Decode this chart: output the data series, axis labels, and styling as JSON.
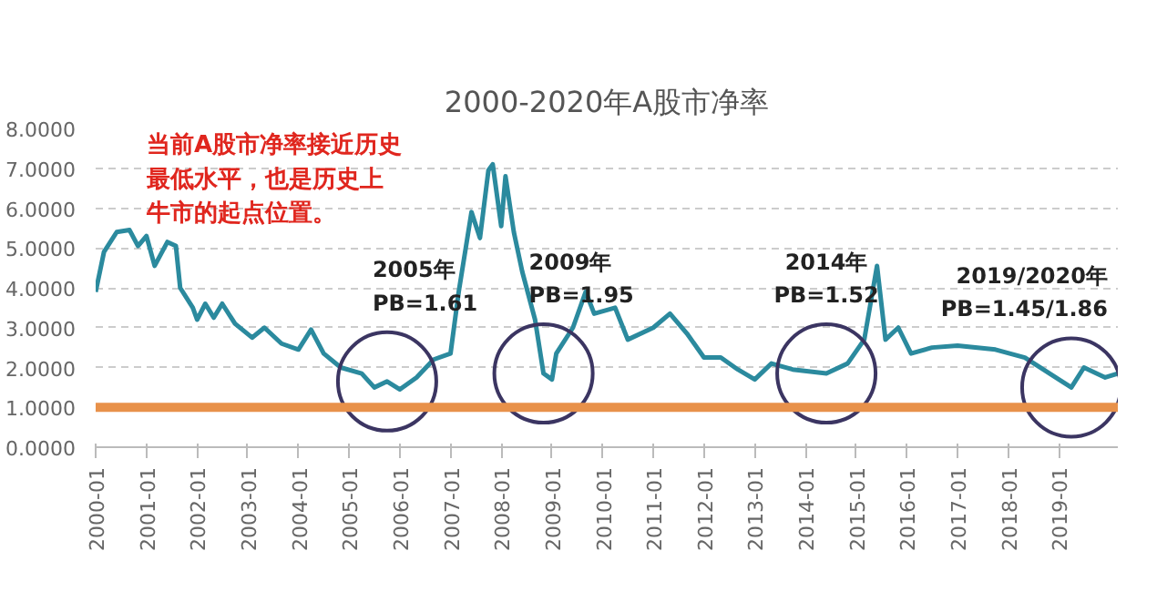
{
  "chart_data": {
    "type": "line",
    "title": "2000-2020年A股市净率",
    "x": [
      "2000-01",
      "2000-03",
      "2000-06",
      "2000-09",
      "2000-11",
      "2001-01",
      "2001-03",
      "2001-06",
      "2001-08",
      "2001-09",
      "2001-12",
      "2002-01",
      "2002-03",
      "2002-05",
      "2002-07",
      "2002-10",
      "2003-02",
      "2003-05",
      "2003-09",
      "2004-01",
      "2004-04",
      "2004-07",
      "2004-11",
      "2005-04",
      "2005-07",
      "2005-10",
      "2006-01",
      "2006-05",
      "2006-09",
      "2007-01",
      "2007-03",
      "2007-06",
      "2007-08",
      "2007-10",
      "2007-11",
      "2008-01",
      "2008-02",
      "2008-04",
      "2008-06",
      "2008-09",
      "2008-11",
      "2009-01",
      "2009-02",
      "2009-06",
      "2009-09",
      "2009-11",
      "2010-04",
      "2010-07",
      "2011-01",
      "2011-05",
      "2011-09",
      "2012-01",
      "2012-05",
      "2012-09",
      "2013-01",
      "2013-05",
      "2013-10",
      "2014-06",
      "2014-11",
      "2015-03",
      "2015-06",
      "2015-08",
      "2015-11",
      "2016-02",
      "2016-07",
      "2017-01",
      "2017-10",
      "2018-05",
      "2019-01",
      "2019-04",
      "2019-07",
      "2019-12",
      "2020-03"
    ],
    "series": [
      {
        "color": "#2b8a9e",
        "values": [
          3.9,
          4.9,
          5.4,
          5.45,
          5.05,
          5.3,
          4.55,
          5.15,
          5.05,
          4.0,
          3.5,
          3.2,
          3.6,
          3.25,
          3.6,
          3.1,
          2.75,
          3.0,
          2.6,
          2.45,
          2.95,
          2.35,
          2.0,
          1.85,
          1.5,
          1.65,
          1.45,
          1.75,
          2.2,
          2.35,
          3.9,
          5.9,
          5.25,
          6.95,
          7.1,
          5.55,
          6.8,
          5.4,
          4.4,
          3.2,
          1.85,
          1.7,
          2.35,
          3.0,
          3.9,
          3.35,
          3.5,
          2.7,
          3.0,
          3.35,
          2.85,
          2.25,
          2.25,
          1.95,
          1.7,
          2.1,
          1.95,
          1.85,
          2.1,
          2.7,
          4.55,
          2.7,
          3.0,
          2.35,
          2.5,
          2.55,
          2.45,
          2.25,
          1.7,
          1.5,
          2.0,
          1.75,
          1.85
        ]
      }
    ],
    "xlim": [
      "2000-01",
      "2020-03"
    ],
    "xticks": [
      "2000-01",
      "2001-01",
      "2002-01",
      "2003-01",
      "2004-01",
      "2005-01",
      "2006-01",
      "2007-01",
      "2008-01",
      "2009-01",
      "2010-01",
      "2011-01",
      "2012-01",
      "2013-01",
      "2014-01",
      "2015-01",
      "2016-01",
      "2017-01",
      "2018-01",
      "2019-01"
    ],
    "ylim": [
      0,
      8
    ],
    "yticks": [
      {
        "value": 0,
        "label": "0.0000"
      },
      {
        "value": 1,
        "label": "1.0000"
      },
      {
        "value": 2,
        "label": "2.0000"
      },
      {
        "value": 3,
        "label": "3.0000"
      },
      {
        "value": 4,
        "label": "4.0000"
      },
      {
        "value": 5,
        "label": "5.0000"
      },
      {
        "value": 6,
        "label": "6.0000"
      },
      {
        "value": 7,
        "label": "7.0000"
      },
      {
        "value": 8,
        "label": "8.0000"
      }
    ],
    "grid": "y",
    "ref_lines": [
      {
        "axis": "y",
        "value": 1.0,
        "color": "#e8914a"
      }
    ],
    "annotations": [
      "当前A股市净率接近历史最低水平，也是历史上牛市的起点位置。",
      {
        "text": "2005年\nPB=1.61",
        "x": "2005-10",
        "y": 1.65
      },
      {
        "text": "2009年\nPB=1.95",
        "x": "2008-11",
        "y": 1.85
      },
      {
        "text": "2014年\nPB=1.52",
        "x": "2014-06",
        "y": 1.85
      },
      {
        "text": "2019/2020年\nPB=1.45/1.86",
        "x": "2019-04",
        "y": 1.5
      }
    ]
  }
}
